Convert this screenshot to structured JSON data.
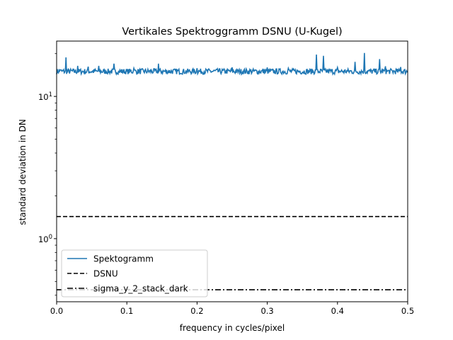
{
  "chart_data": {
    "type": "line",
    "title": "Vertikales Spektroggramm DSNU (U-Kugel)",
    "xlabel": "frequency in cycles/pixel",
    "ylabel": "standard deviation in DN",
    "xlim": [
      0.0,
      0.5
    ],
    "ylim": [
      0.36,
      24.5
    ],
    "yscale": "log",
    "x_ticks": [
      "0.0",
      "0.1",
      "0.2",
      "0.3",
      "0.4",
      "0.5"
    ],
    "x_tick_values": [
      0.0,
      0.1,
      0.2,
      0.3,
      0.4,
      0.5
    ],
    "y_major_ticks": [
      {
        "value": 1,
        "base": "10",
        "exp": "0"
      },
      {
        "value": 10,
        "base": "10",
        "exp": "1"
      }
    ],
    "grid": false,
    "legend_position": "lower-left",
    "series": [
      {
        "name": "Spektogramm",
        "style": "solid",
        "color": "#1f77b4",
        "baseline": 15.0,
        "x": [
          0.005,
          0.013,
          0.03,
          0.045,
          0.06,
          0.082,
          0.11,
          0.145,
          0.2,
          0.25,
          0.3,
          0.33,
          0.37,
          0.38,
          0.4,
          0.425,
          0.438,
          0.46,
          0.468,
          0.49
        ],
        "y": [
          15.4,
          18.8,
          16.4,
          16.2,
          16.4,
          17.0,
          15.8,
          17.0,
          15.8,
          16.0,
          16.0,
          15.8,
          19.7,
          19.3,
          16.0,
          17.5,
          20.2,
          18.3,
          16.3,
          16.1
        ]
      },
      {
        "name": "DSNU",
        "style": "dashed",
        "color": "#000000",
        "x": [
          0.0,
          0.5
        ],
        "y": [
          1.43,
          1.43
        ]
      },
      {
        "name": "sigma_y_2_stack_dark",
        "style": "dashdot",
        "color": "#000000",
        "x": [
          0.0,
          0.5
        ],
        "y": [
          0.437,
          0.437
        ]
      }
    ]
  }
}
